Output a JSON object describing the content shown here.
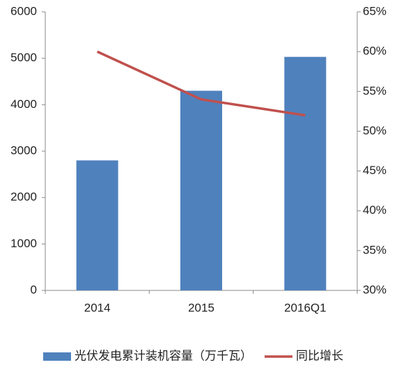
{
  "chart_data": {
    "type": "bar_line",
    "categories": [
      "2014",
      "2015",
      "2016Q1"
    ],
    "series": [
      {
        "name": "光伏发电累计装机容量（万千瓦）",
        "color": "#4f81bd",
        "type": "bar",
        "values": [
          2800,
          4300,
          5030
        ]
      },
      {
        "name": "同比增长",
        "color": "#c0504d",
        "type": "line",
        "axis": "y2",
        "values": [
          60,
          54,
          52
        ]
      }
    ],
    "ylim": [
      0,
      6000
    ],
    "yticks": [
      0,
      1000,
      2000,
      3000,
      4000,
      5000,
      6000
    ],
    "y2lim": [
      30,
      65
    ],
    "y2ticks": [
      {
        "value": 30,
        "label": "30%"
      },
      {
        "value": 35,
        "label": "35%"
      },
      {
        "value": 40,
        "label": "40%"
      },
      {
        "value": 45,
        "label": "45%"
      },
      {
        "value": 50,
        "label": "50%"
      },
      {
        "value": 55,
        "label": "55%"
      },
      {
        "value": 60,
        "label": "60%"
      },
      {
        "value": 65,
        "label": "65%"
      }
    ],
    "grid": false,
    "legend": "bottom"
  }
}
